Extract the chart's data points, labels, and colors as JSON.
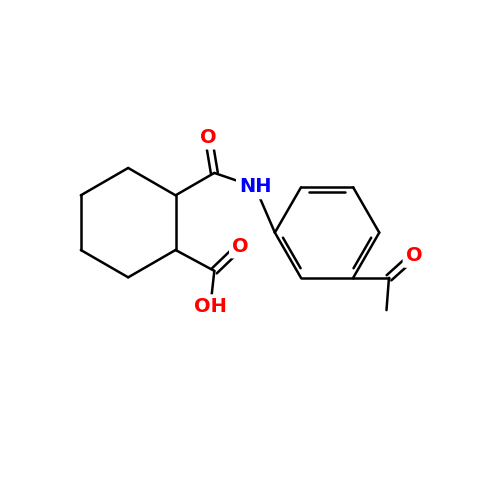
{
  "background_color": "#ffffff",
  "bond_color": "#000000",
  "atom_colors": {
    "O": "#ff0000",
    "N": "#0000ff",
    "C": "#000000"
  },
  "font_size": 14,
  "lw": 1.8,
  "figsize": [
    5.0,
    5.0
  ],
  "dpi": 100,
  "xlim": [
    0,
    10
  ],
  "ylim": [
    0,
    10
  ]
}
